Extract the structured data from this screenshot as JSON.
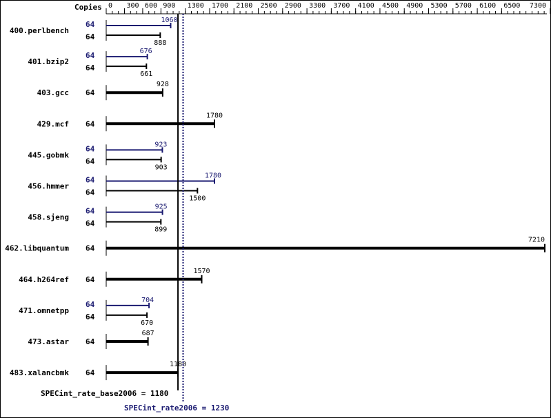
{
  "chart_data": {
    "type": "bar",
    "header": "Copies",
    "ticks": [
      0,
      300,
      600,
      900,
      1300,
      1700,
      2100,
      2500,
      2900,
      3300,
      3700,
      4100,
      4500,
      4900,
      5300,
      5700,
      6100,
      6500,
      7300
    ],
    "xlim": [
      0,
      7300
    ],
    "colors": {
      "base": "#000000",
      "peak": "#191970"
    },
    "categories": [
      "400.perlbench",
      "401.bzip2",
      "403.gcc",
      "429.mcf",
      "445.gobmk",
      "456.hmmer",
      "458.sjeng",
      "462.libquantum",
      "464.h264ref",
      "471.omnetpp",
      "473.astar",
      "483.xalancbmk"
    ],
    "series": [
      {
        "name": "SPECint_rate_base2006",
        "copies": [
          64,
          64,
          64,
          64,
          64,
          64,
          64,
          64,
          64,
          64,
          64,
          64
        ],
        "values": [
          888,
          661,
          928,
          1780,
          903,
          1500,
          899,
          7210,
          1570,
          670,
          687,
          1180
        ]
      },
      {
        "name": "SPECint_rate2006",
        "copies": [
          64,
          64,
          null,
          null,
          64,
          64,
          64,
          null,
          null,
          64,
          null,
          null
        ],
        "values": [
          1060,
          676,
          null,
          null,
          923,
          1780,
          925,
          null,
          null,
          704,
          null,
          null
        ]
      }
    ],
    "summary": {
      "base_label": "SPECint_rate_base2006 = 1180",
      "peak_label": "SPECint_rate2006 = 1230",
      "base_value": 1180,
      "peak_value": 1230
    }
  }
}
